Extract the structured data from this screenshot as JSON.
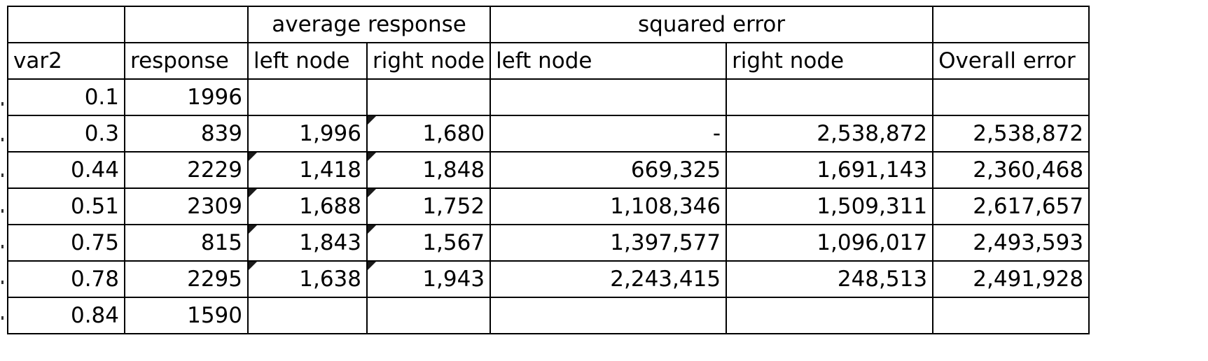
{
  "group_headers": {
    "average_response": "average response",
    "squared_error": "squared error"
  },
  "column_headers": [
    "var2",
    "response",
    "left node",
    "right node",
    "left node",
    "right node",
    "Overall error"
  ],
  "rows": [
    {
      "var2": "0.1",
      "response": "1996",
      "avg_left": "",
      "avg_right": "",
      "err_left": "",
      "err_right": "",
      "overall": ""
    },
    {
      "var2": "0.3",
      "response": "839",
      "avg_left": "1,996",
      "avg_right": "1,680",
      "err_left": "-",
      "err_right": "2,538,872",
      "overall": "2,538,872"
    },
    {
      "var2": "0.44",
      "response": "2229",
      "avg_left": "1,418",
      "avg_right": "1,848",
      "err_left": "669,325",
      "err_right": "1,691,143",
      "overall": "2,360,468"
    },
    {
      "var2": "0.51",
      "response": "2309",
      "avg_left": "1,688",
      "avg_right": "1,752",
      "err_left": "1,108,346",
      "err_right": "1,509,311",
      "overall": "2,617,657"
    },
    {
      "var2": "0.75",
      "response": "815",
      "avg_left": "1,843",
      "avg_right": "1,567",
      "err_left": "1,397,577",
      "err_right": "1,096,017",
      "overall": "2,493,593"
    },
    {
      "var2": "0.78",
      "response": "2295",
      "avg_left": "1,638",
      "avg_right": "1,943",
      "err_left": "2,243,415",
      "err_right": "248,513",
      "overall": "2,491,928"
    },
    {
      "var2": "0.84",
      "response": "1590",
      "avg_left": "",
      "avg_right": "",
      "err_left": "",
      "err_right": "",
      "overall": ""
    }
  ]
}
